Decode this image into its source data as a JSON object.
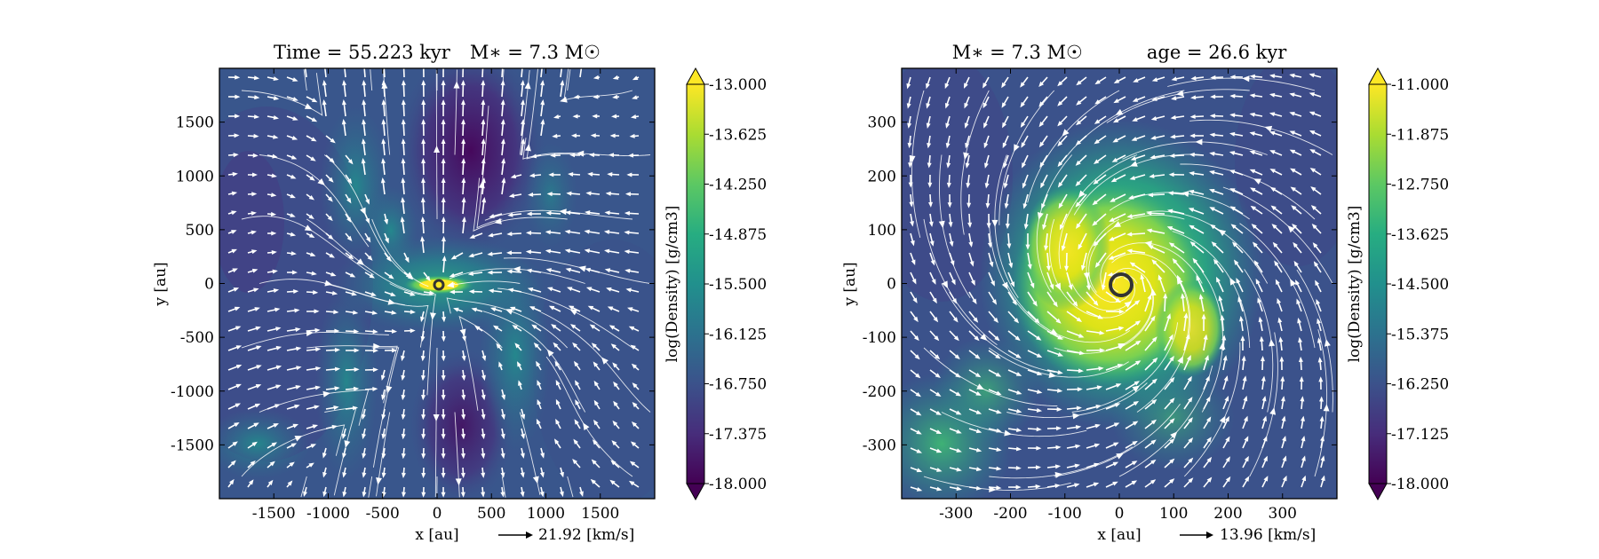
{
  "chart_data": [
    {
      "type": "heatmap",
      "title": "Time = 55.223 kyr    M$_*$ = 7.3 M$_\\odot$",
      "title_parts": {
        "time": "Time = 55.223 kyr",
        "mass": "M∗ = 7.3 M☉"
      },
      "xlabel": "x [au]",
      "ylabel": "y [au]",
      "xlim": [
        -2000,
        2000
      ],
      "ylim": [
        -2000,
        2000
      ],
      "xticks": [
        -1500,
        -1000,
        -500,
        0,
        500,
        1000,
        1500
      ],
      "yticks": [
        -1500,
        -1000,
        -500,
        0,
        500,
        1000,
        1500
      ],
      "colorbar": {
        "label": "log(Density) [g/cm3]",
        "ticks": [
          "-13.000",
          "-13.625",
          "-14.250",
          "-14.875",
          "-15.500",
          "-16.125",
          "-16.750",
          "-17.375",
          "-18.000"
        ],
        "range": [
          -18.0,
          -13.0
        ],
        "colormap": "viridis",
        "extend": "both"
      },
      "velocity_key": {
        "label": "21.92 [km/s]",
        "value": 21.92
      },
      "overlays": [
        "streamlines",
        "velocity-arrows",
        "sink-particle"
      ],
      "sink_center": [
        0,
        0
      ]
    },
    {
      "type": "heatmap",
      "title": "M∗ = 7.3 M☉       age = 26.6 kyr",
      "title_parts": {
        "mass": "M∗ = 7.3 M☉",
        "age": "age = 26.6 kyr"
      },
      "xlabel": "x [au]",
      "ylabel": "y [au]",
      "xlim": [
        -400,
        400
      ],
      "ylim": [
        -400,
        400
      ],
      "xticks": [
        -300,
        -200,
        -100,
        0,
        100,
        200,
        300
      ],
      "yticks": [
        -300,
        -200,
        -100,
        0,
        100,
        200,
        300
      ],
      "colorbar": {
        "label": "log(Density) [g/cm3]",
        "ticks": [
          "-11.000",
          "-11.875",
          "-12.750",
          "-13.625",
          "-14.500",
          "-15.375",
          "-16.250",
          "-17.125",
          "-18.000"
        ],
        "range": [
          -18.0,
          -11.0
        ],
        "colormap": "viridis",
        "extend": "both"
      },
      "velocity_key": {
        "label": "13.96 [km/s]",
        "value": 13.96
      },
      "overlays": [
        "streamlines",
        "velocity-arrows",
        "sink-particle"
      ],
      "sink_center": [
        0,
        0
      ]
    }
  ],
  "colors": {
    "viridis_low": "#440154",
    "viridis_mid": "#21908d",
    "viridis_high": "#fde725",
    "streamline": "#ffffff",
    "sink": "#333333"
  }
}
